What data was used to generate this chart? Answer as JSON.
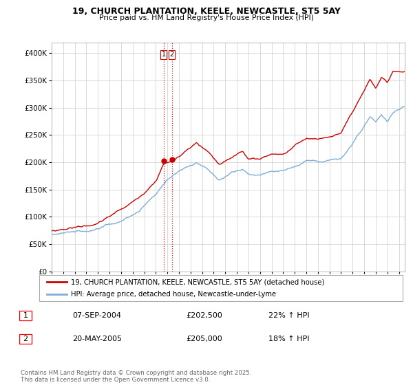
{
  "title": "19, CHURCH PLANTATION, KEELE, NEWCASTLE, ST5 5AY",
  "subtitle": "Price paid vs. HM Land Registry's House Price Index (HPI)",
  "legend_entry1": "19, CHURCH PLANTATION, KEELE, NEWCASTLE, ST5 5AY (detached house)",
  "legend_entry2": "HPI: Average price, detached house, Newcastle-under-Lyme",
  "sale1_date": "07-SEP-2004",
  "sale1_price": "£202,500",
  "sale1_hpi": "22% ↑ HPI",
  "sale2_date": "20-MAY-2005",
  "sale2_price": "£205,000",
  "sale2_hpi": "18% ↑ HPI",
  "sale1_year": 2004.68,
  "sale1_value": 202500,
  "sale2_year": 2005.38,
  "sale2_value": 205000,
  "color_property": "#cc0000",
  "color_hpi": "#7eadd4",
  "color_vline": "#cc0000",
  "ylim": [
    0,
    420000
  ],
  "xlim_start": 1995,
  "xlim_end": 2025.5,
  "footer": "Contains HM Land Registry data © Crown copyright and database right 2025.\nThis data is licensed under the Open Government Licence v3.0.",
  "prop_keypoints": [
    [
      1995.0,
      75000
    ],
    [
      1997.0,
      83000
    ],
    [
      1999.0,
      90000
    ],
    [
      2001.0,
      115000
    ],
    [
      2002.5,
      135000
    ],
    [
      2004.0,
      170000
    ],
    [
      2004.68,
      202500
    ],
    [
      2005.38,
      205000
    ],
    [
      2007.5,
      238000
    ],
    [
      2008.5,
      220000
    ],
    [
      2009.5,
      195000
    ],
    [
      2010.5,
      205000
    ],
    [
      2011.5,
      220000
    ],
    [
      2012.0,
      205000
    ],
    [
      2013.0,
      205000
    ],
    [
      2014.0,
      215000
    ],
    [
      2015.0,
      215000
    ],
    [
      2016.0,
      230000
    ],
    [
      2017.0,
      245000
    ],
    [
      2018.0,
      243000
    ],
    [
      2019.0,
      248000
    ],
    [
      2020.0,
      255000
    ],
    [
      2021.0,
      290000
    ],
    [
      2022.0,
      325000
    ],
    [
      2022.5,
      345000
    ],
    [
      2023.0,
      330000
    ],
    [
      2023.5,
      350000
    ],
    [
      2024.0,
      340000
    ],
    [
      2024.5,
      360000
    ],
    [
      2025.3,
      360000
    ]
  ],
  "hpi_keypoints": [
    [
      1995.0,
      64000
    ],
    [
      1997.0,
      70000
    ],
    [
      1999.0,
      76000
    ],
    [
      2001.0,
      95000
    ],
    [
      2002.5,
      115000
    ],
    [
      2004.0,
      145000
    ],
    [
      2005.0,
      170000
    ],
    [
      2006.0,
      185000
    ],
    [
      2007.5,
      200000
    ],
    [
      2008.5,
      185000
    ],
    [
      2009.5,
      165000
    ],
    [
      2010.5,
      178000
    ],
    [
      2011.5,
      185000
    ],
    [
      2012.0,
      175000
    ],
    [
      2013.0,
      175000
    ],
    [
      2014.0,
      183000
    ],
    [
      2015.0,
      188000
    ],
    [
      2016.0,
      195000
    ],
    [
      2017.0,
      205000
    ],
    [
      2018.0,
      200000
    ],
    [
      2019.0,
      205000
    ],
    [
      2020.0,
      205000
    ],
    [
      2021.0,
      235000
    ],
    [
      2022.0,
      265000
    ],
    [
      2022.5,
      280000
    ],
    [
      2023.0,
      270000
    ],
    [
      2023.5,
      285000
    ],
    [
      2024.0,
      275000
    ],
    [
      2024.5,
      295000
    ],
    [
      2025.3,
      305000
    ]
  ]
}
